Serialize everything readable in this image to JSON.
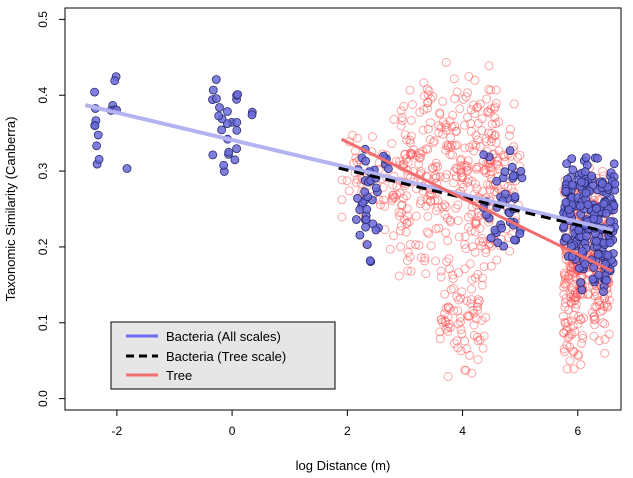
{
  "chart_data": {
    "type": "scatter",
    "title": "",
    "xlabel": "log Distance (m)",
    "ylabel": "Taxonomic Similarity (Canberra)",
    "xlim": [
      -2.9,
      6.75
    ],
    "ylim": [
      -0.015,
      0.515
    ],
    "xticks": [
      -2,
      0,
      2,
      4,
      6
    ],
    "xtick_labels": [
      "-2",
      "0",
      "2",
      "4",
      "6"
    ],
    "yticks": [
      0.0,
      0.1,
      0.2,
      0.3,
      0.4,
      0.5
    ],
    "ytick_labels": [
      "0.0",
      "0.1",
      "0.2",
      "0.3",
      "0.4",
      "0.5"
    ],
    "grid": false,
    "legend_position": "bottom-left",
    "series": [
      {
        "name": "Tree",
        "kind": "points",
        "marker": "open-circle",
        "color": "#ff4d4d",
        "clusters": [
          {
            "x_range": [
              1.9,
              3.0
            ],
            "y_range": [
              0.18,
              0.39
            ],
            "n": 70
          },
          {
            "x_range": [
              2.9,
              4.6
            ],
            "y_range": [
              0.15,
              0.45
            ],
            "n": 320
          },
          {
            "x_range": [
              3.6,
              4.4
            ],
            "y_range": [
              0.02,
              0.2
            ],
            "n": 80
          },
          {
            "x_range": [
              4.4,
              5.0
            ],
            "y_range": [
              0.17,
              0.4
            ],
            "n": 70
          },
          {
            "x_range": [
              5.75,
              6.1
            ],
            "y_range": [
              0.03,
              0.31
            ],
            "n": 180
          },
          {
            "x_range": [
              6.15,
              6.55
            ],
            "y_range": [
              0.05,
              0.31
            ],
            "n": 170
          }
        ]
      },
      {
        "name": "Bacteria",
        "kind": "points",
        "marker": "filled-circle",
        "color": "#6a6ad8",
        "clusters": [
          {
            "x_range": [
              -2.4,
              -2.3
            ],
            "y_range": [
              0.29,
              0.42
            ],
            "n": 9
          },
          {
            "x_range": [
              -2.1,
              -2.0
            ],
            "y_range": [
              0.34,
              0.43
            ],
            "n": 6
          },
          {
            "x_range": [
              -1.85,
              -1.75
            ],
            "y_range": [
              0.3,
              0.31
            ],
            "n": 1
          },
          {
            "x_range": [
              -0.4,
              0.1
            ],
            "y_range": [
              0.28,
              0.43
            ],
            "n": 24
          },
          {
            "x_range": [
              0.25,
              0.4
            ],
            "y_range": [
              0.37,
              0.38
            ],
            "n": 2
          },
          {
            "x_range": [
              2.15,
              2.55
            ],
            "y_range": [
              0.17,
              0.36
            ],
            "n": 35
          },
          {
            "x_range": [
              2.6,
              2.75
            ],
            "y_range": [
              0.28,
              0.34
            ],
            "n": 6
          },
          {
            "x_range": [
              4.35,
              5.05
            ],
            "y_range": [
              0.18,
              0.34
            ],
            "n": 40
          },
          {
            "x_range": [
              5.75,
              6.0
            ],
            "y_range": [
              0.17,
              0.33
            ],
            "n": 50
          },
          {
            "x_range": [
              6.0,
              6.65
            ],
            "y_range": [
              0.13,
              0.33
            ],
            "n": 170
          }
        ]
      },
      {
        "name": "Bacteria (All scales)",
        "kind": "line",
        "color": "#b3b3f2",
        "width": 4,
        "dash": "solid",
        "x": [
          -2.55,
          6.6
        ],
        "y": [
          0.387,
          0.222
        ]
      },
      {
        "name": "Bacteria (Tree scale)",
        "kind": "line",
        "color": "#000000",
        "width": 3,
        "dash": "dashed",
        "x": [
          1.85,
          6.6
        ],
        "y": [
          0.304,
          0.218
        ]
      },
      {
        "name": "Tree",
        "kind": "line",
        "color": "#f26d6d",
        "width": 3,
        "dash": "solid",
        "x": [
          1.9,
          6.6
        ],
        "y": [
          0.342,
          0.168
        ]
      }
    ],
    "legend": [
      {
        "label": "Bacteria (All scales)",
        "color": "#6b6bf0",
        "dash": "solid"
      },
      {
        "label": "Bacteria (Tree scale)",
        "color": "#000000",
        "dash": "dashed"
      },
      {
        "label": "Tree",
        "color": "#f26d6d",
        "dash": "solid"
      }
    ]
  }
}
